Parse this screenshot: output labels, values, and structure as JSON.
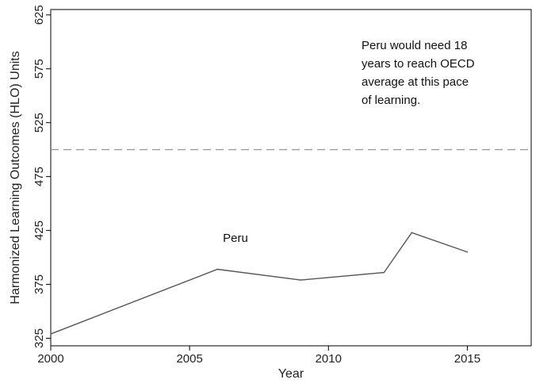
{
  "chart_data": {
    "type": "line",
    "xlabel": "Year",
    "ylabel": "Harmonized Learning Outcomes (HLO) Units",
    "xlim": [
      2000,
      2017.3
    ],
    "ylim": [
      318,
      630
    ],
    "xticks": [
      2000,
      2005,
      2010,
      2015
    ],
    "yticks": [
      325,
      375,
      425,
      475,
      525,
      575,
      625
    ],
    "series": [
      {
        "name": "Peru",
        "x": [
          2000,
          2006,
          2009,
          2012,
          2013,
          2015
        ],
        "y": [
          329,
          389,
          379,
          386,
          423,
          405
        ]
      }
    ],
    "reference_line": {
      "y": 500,
      "style": "dashed"
    },
    "series_label": {
      "text": "Peru",
      "x": 2006.2,
      "y": 418
    },
    "annotation": {
      "lines": [
        "Peru would need 18",
        "years to reach OECD",
        "average at this pace",
        "of learning."
      ]
    },
    "grid": false,
    "colors": {
      "series": "#555555",
      "reference": "#8c8c8c",
      "axis": "#000000"
    }
  }
}
